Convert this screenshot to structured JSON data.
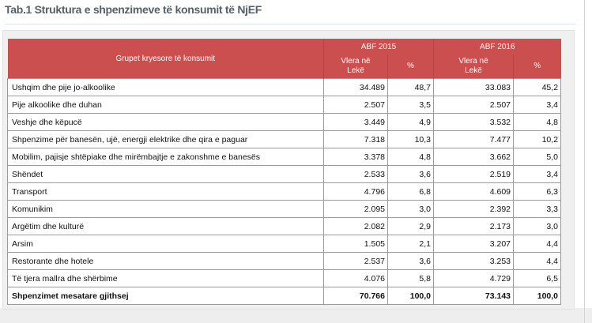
{
  "title": "Tab.1 Struktura e shpenzimeve të konsumit të NjEF",
  "header": {
    "group_col": "Grupet kryesore të konsumit",
    "year1": "ABF 2015",
    "year2": "ABF 2016",
    "value_label_line1": "Vlera në",
    "value_label_line2": "Lekë",
    "pct_label": "%"
  },
  "rows": [
    {
      "label": "Ushqim dhe pije jo-alkoolike",
      "v2015": "34.489",
      "p2015": "48,7",
      "v2016": "33.083",
      "p2016": "45,2"
    },
    {
      "label": "Pije alkoolike dhe duhan",
      "v2015": "2.507",
      "p2015": "3,5",
      "v2016": "2.507",
      "p2016": "3,4"
    },
    {
      "label": "Veshje dhe këpucë",
      "v2015": "3.449",
      "p2015": "4,9",
      "v2016": "3.532",
      "p2016": "4,8"
    },
    {
      "label": "Shpenzime për banesën, ujë, energji elektrike dhe qira e paguar",
      "v2015": "7.318",
      "p2015": "10,3",
      "v2016": "7.477",
      "p2016": "10,2"
    },
    {
      "label": "Mobilim, pajisje shtëpiake dhe mirëmbajtje e zakonshme e banesës",
      "v2015": "3.378",
      "p2015": "4,8",
      "v2016": "3.662",
      "p2016": "5,0"
    },
    {
      "label": "Shëndet",
      "v2015": "2.533",
      "p2015": "3,6",
      "v2016": "2.519",
      "p2016": "3,4"
    },
    {
      "label": "Transport",
      "v2015": "4.796",
      "p2015": "6,8",
      "v2016": "4.609",
      "p2016": "6,3"
    },
    {
      "label": "Komunikim",
      "v2015": "2.095",
      "p2015": "3,0",
      "v2016": "2.392",
      "p2016": "3,3"
    },
    {
      "label": "Argëtim dhe kulturë",
      "v2015": "2.082",
      "p2015": "2,9",
      "v2016": "2.173",
      "p2016": "3,0"
    },
    {
      "label": "Arsim",
      "v2015": "1.505",
      "p2015": "2,1",
      "v2016": "3.207",
      "p2016": "4,4"
    },
    {
      "label": "Restorante dhe hotele",
      "v2015": "2.537",
      "p2015": "3,6",
      "v2016": "3.253",
      "p2016": "4,4"
    },
    {
      "label": "Të tjera mallra dhe shërbime",
      "v2015": "4.076",
      "p2015": "5,8",
      "v2016": "4.729",
      "p2016": "6,5"
    }
  ],
  "total": {
    "label": "Shpenzimet mesatare gjithsej",
    "v2015": "70.766",
    "p2015": "100,0",
    "v2016": "73.143",
    "p2016": "100,0"
  }
}
